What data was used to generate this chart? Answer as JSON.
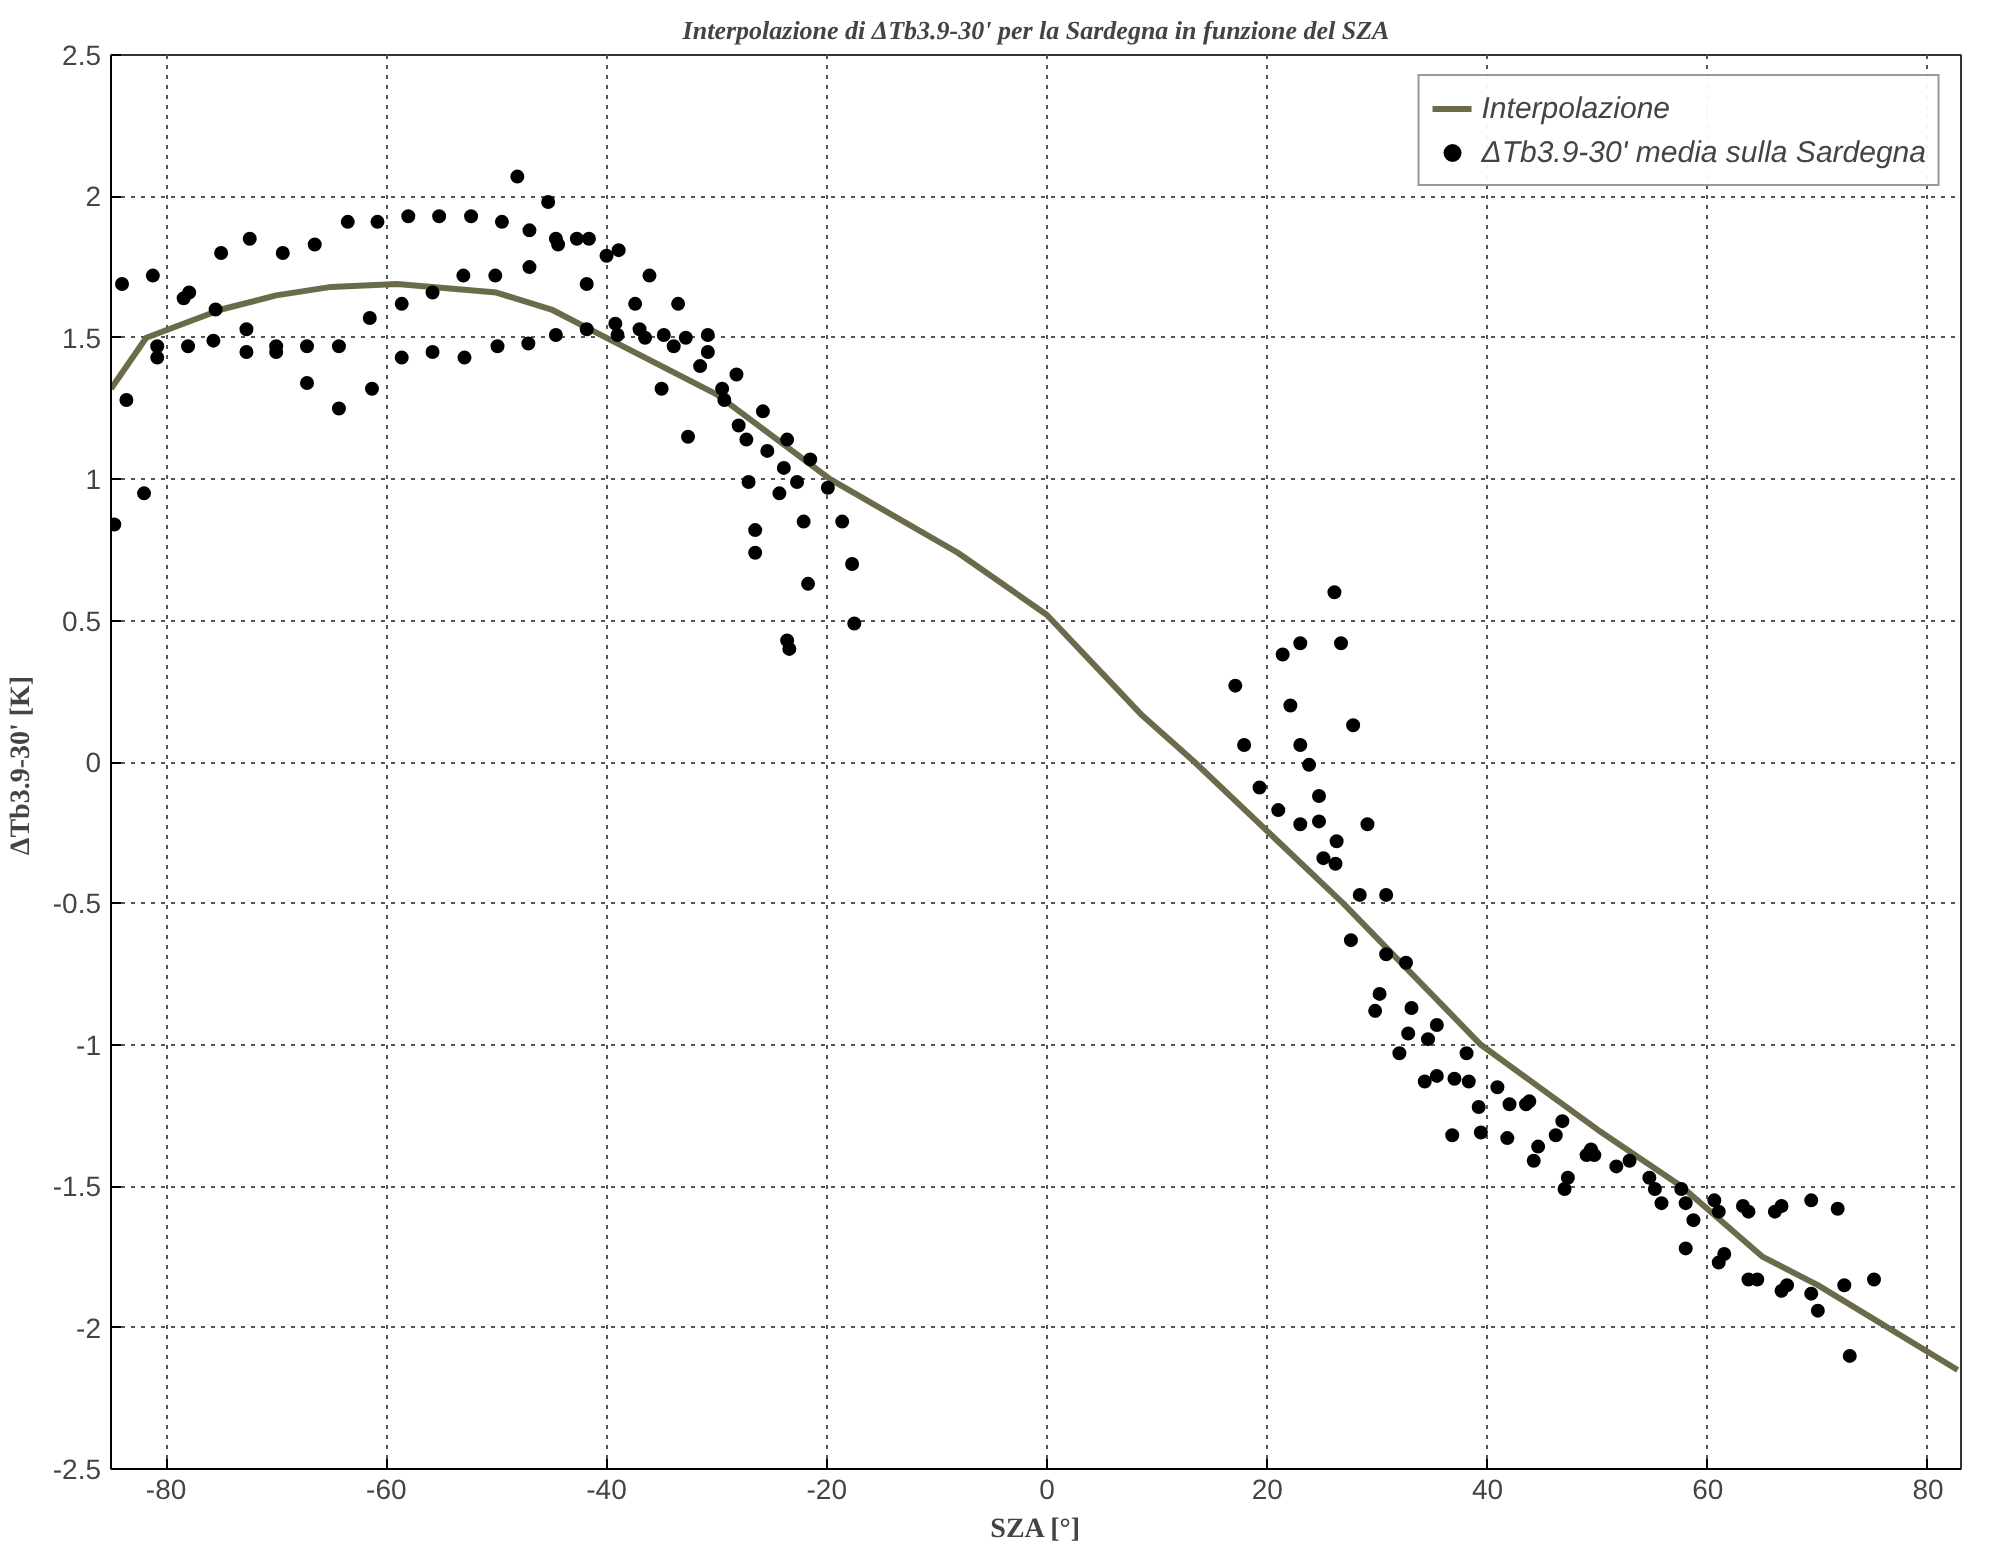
{
  "chart_data": {
    "type": "scatter",
    "title": "Interpolazione di ΔTb3.9-30' per la Sardegna in funzione del SZA",
    "xlabel": "SZA [°]",
    "ylabel": "ΔTb3.9-30'  [K]",
    "xlim": [
      -85,
      83
    ],
    "ylim": [
      -2.5,
      2.5
    ],
    "xticks": [
      -80,
      -60,
      -40,
      -20,
      0,
      20,
      40,
      60,
      80
    ],
    "yticks": [
      -2.5,
      -2,
      -1.5,
      -1,
      -0.5,
      0,
      0.5,
      1,
      1.5,
      2,
      2.5
    ],
    "grid": true,
    "legend": "top right",
    "series": [
      {
        "name": "Interpolazione",
        "type": "line",
        "color": "#6b6b4c",
        "marker": "none",
        "line_style": "solid",
        "x": [
          -85,
          -81.8,
          -75,
          -70,
          -65,
          -59,
          -50,
          -45,
          -40,
          -30,
          -19.7,
          -8.1,
          0,
          8.5,
          13.4,
          26.9,
          39.4,
          50,
          57.6,
          65,
          70,
          82.7
        ],
        "values": [
          1.32,
          1.5,
          1.6,
          1.65,
          1.68,
          1.69,
          1.66,
          1.6,
          1.5,
          1.3,
          1.0,
          0.74,
          0.52,
          0.17,
          0,
          -0.5,
          -1,
          -1.3,
          -1.5,
          -1.75,
          -1.85,
          -2.15
        ]
      },
      {
        "name": "ΔTb3.9-30' media sulla Sardegna",
        "color": "#000000",
        "marker": "circle",
        "x": [
          -84.7,
          -84,
          -83.6,
          -82,
          -81.2,
          -80.8,
          -80.8,
          -78.4,
          -77.9,
          -78,
          -75.7,
          -75.5,
          -75,
          -72.7,
          -72.7,
          -72.4,
          -70,
          -70,
          -69.4,
          -67.2,
          -67.2,
          -66.5,
          -64.3,
          -64.3,
          -63.5,
          -61.5,
          -61.3,
          -60.8,
          -58.6,
          -58.6,
          -58,
          -55.8,
          -55.8,
          -55.2,
          -52.9,
          -53,
          -52.3,
          -49.9,
          -50.1,
          -49.5,
          -48.1,
          -47,
          -47.1,
          -47,
          -45.3,
          -44.6,
          -44.4,
          -44.6,
          -42.7,
          -41.6,
          -41.8,
          -41.8,
          -40,
          -38.9,
          -39.2,
          -39,
          -36.1,
          -37.4,
          -37,
          -36.5,
          -35,
          -34.8,
          -33.9,
          -33.5,
          -32.8,
          -32.6,
          -31.5,
          -30.8,
          -30.8,
          -28.2,
          -29.5,
          -29.3,
          -25.8,
          -28,
          -27.3,
          -25.4,
          -23.6,
          -21.5,
          -23.9,
          -27.1,
          -22.7,
          -19.9,
          -24.3,
          -22.1,
          -18.6,
          -26.5,
          -26.5,
          -17.7,
          -21.7,
          -17.5,
          -23.6,
          -23.4,
          26.1,
          23,
          26.7,
          21.4,
          17.1,
          22.1,
          27.8,
          17.9,
          23,
          23.8,
          19.3,
          24.7,
          21,
          23,
          24.7,
          29.1,
          26.3,
          25.1,
          26.2,
          28.4,
          30.8,
          27.6,
          30.8,
          32.6,
          30.2,
          29.8,
          33.1,
          32.8,
          35.4,
          34.6,
          32,
          38.1,
          34.3,
          35.4,
          37,
          38.3,
          40.9,
          36.8,
          39.2,
          39.4,
          42,
          41.8,
          43.5,
          43.8,
          46.8,
          44.6,
          44.2,
          46.2,
          49.4,
          49.7,
          49,
          47.3,
          47,
          51.7,
          52.9,
          54.7,
          55.2,
          55.8,
          57.6,
          58,
          58.7,
          58,
          60.6,
          61,
          63.2,
          63.7,
          66.1,
          66.7,
          69.4,
          71.8,
          61,
          61.5,
          63.7,
          64.5,
          66.7,
          67.2,
          69.4,
          70,
          72.4,
          75.1,
          72.9
        ],
        "values": [
          0.84,
          1.69,
          1.28,
          0.95,
          1.72,
          1.47,
          1.43,
          1.64,
          1.66,
          1.47,
          1.49,
          1.6,
          1.8,
          1.53,
          1.45,
          1.85,
          1.47,
          1.45,
          1.8,
          1.47,
          1.34,
          1.83,
          1.47,
          1.25,
          1.91,
          1.57,
          1.32,
          1.91,
          1.62,
          1.43,
          1.93,
          1.66,
          1.45,
          1.93,
          1.43,
          1.72,
          1.93,
          1.47,
          1.72,
          1.91,
          2.07,
          1.75,
          1.48,
          1.88,
          1.98,
          1.85,
          1.83,
          1.51,
          1.85,
          1.85,
          1.69,
          1.53,
          1.79,
          1.81,
          1.55,
          1.51,
          1.72,
          1.62,
          1.53,
          1.5,
          1.32,
          1.51,
          1.47,
          1.62,
          1.5,
          1.15,
          1.4,
          1.51,
          1.45,
          1.37,
          1.32,
          1.28,
          1.24,
          1.19,
          1.14,
          1.1,
          1.14,
          1.07,
          1.04,
          0.99,
          0.99,
          0.97,
          0.95,
          0.85,
          0.85,
          0.82,
          0.74,
          0.7,
          0.63,
          0.49,
          0.43,
          0.4,
          0.6,
          0.42,
          0.42,
          0.38,
          0.27,
          0.2,
          0.13,
          0.06,
          0.06,
          -0.01,
          -0.09,
          -0.12,
          -0.17,
          -0.22,
          -0.21,
          -0.22,
          -0.28,
          -0.34,
          -0.36,
          -0.47,
          -0.47,
          -0.63,
          -0.68,
          -0.71,
          -0.82,
          -0.88,
          -0.87,
          -0.96,
          -0.93,
          -0.98,
          -1.03,
          -1.03,
          -1.13,
          -1.11,
          -1.12,
          -1.13,
          -1.15,
          -1.32,
          -1.22,
          -1.31,
          -1.21,
          -1.33,
          -1.21,
          -1.2,
          -1.27,
          -1.36,
          -1.41,
          -1.32,
          -1.37,
          -1.39,
          -1.39,
          -1.47,
          -1.51,
          -1.43,
          -1.41,
          -1.47,
          -1.51,
          -1.56,
          -1.51,
          -1.56,
          -1.62,
          -1.72,
          -1.55,
          -1.59,
          -1.57,
          -1.59,
          -1.59,
          -1.57,
          -1.55,
          -1.58,
          -1.77,
          -1.74,
          -1.83,
          -1.83,
          -1.87,
          -1.85,
          -1.88,
          -1.94,
          -1.85,
          -1.83,
          -2.1
        ]
      }
    ]
  }
}
